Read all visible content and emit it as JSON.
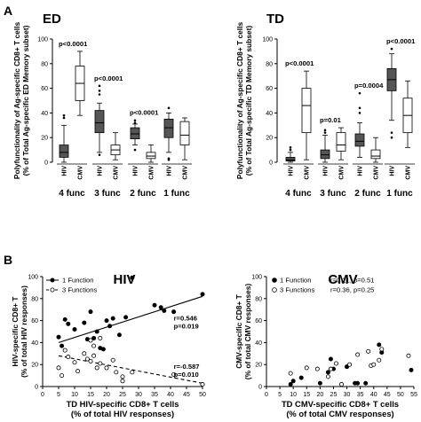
{
  "panel_labels": {
    "a": "A",
    "b": "B"
  },
  "chart_data": [
    {
      "type": "box",
      "title": "ED",
      "ylabel": [
        "Polyfunctionality of Ag-specific CD8+ T cells",
        "(% of Total Ag-specific ED Memory subset)"
      ],
      "ylim": [
        0,
        100
      ],
      "yticks": [
        0,
        20,
        40,
        60,
        80,
        100
      ],
      "groups": [
        "4 func",
        "3 func",
        "2 func",
        "1 func"
      ],
      "categories": [
        "HIV",
        "CMV"
      ],
      "fill_colors": {
        "HIV": "#555555",
        "CMV": "#ffffff"
      },
      "pvalues": [
        "p<0.0001",
        "p<0.0001",
        "p<0.0001",
        ""
      ],
      "boxes": [
        {
          "group": "4 func",
          "cat": "HIV",
          "whisker_low": 0,
          "q1": 4,
          "median": 8,
          "q3": 14,
          "whisker_high": 30,
          "outliers": [
            36,
            38
          ]
        },
        {
          "group": "4 func",
          "cat": "CMV",
          "whisker_low": 38,
          "q1": 50,
          "median": 64,
          "q3": 78,
          "whisker_high": 90,
          "outliers": []
        },
        {
          "group": "3 func",
          "cat": "HIV",
          "whisker_low": 8,
          "q1": 24,
          "median": 32,
          "q3": 42,
          "whisker_high": 48,
          "outliers": [
            6,
            55,
            58,
            62
          ]
        },
        {
          "group": "3 func",
          "cat": "CMV",
          "whisker_low": 2,
          "q1": 6,
          "median": 10,
          "q3": 14,
          "whisker_high": 24,
          "outliers": []
        },
        {
          "group": "2 func",
          "cat": "HIV",
          "whisker_low": 14,
          "q1": 19,
          "median": 23,
          "q3": 28,
          "whisker_high": 31,
          "outliers": [
            10,
            32,
            34
          ]
        },
        {
          "group": "2 func",
          "cat": "CMV",
          "whisker_low": 0,
          "q1": 3,
          "median": 5,
          "q3": 8,
          "whisker_high": 14,
          "outliers": []
        },
        {
          "group": "1 func",
          "cat": "HIV",
          "whisker_low": 8,
          "q1": 20,
          "median": 28,
          "q3": 35,
          "whisker_high": 40,
          "outliers": [
            2,
            3,
            44
          ]
        },
        {
          "group": "1 func",
          "cat": "CMV",
          "whisker_low": 2,
          "q1": 14,
          "median": 22,
          "q3": 33,
          "whisker_high": 36,
          "outliers": []
        }
      ]
    },
    {
      "type": "box",
      "title": "TD",
      "ylabel": [
        "Polyfunctionality of Ag-specific CD8+ T cells",
        "(% of Total Ag-specific TD Memory subset)"
      ],
      "ylim": [
        0,
        100
      ],
      "yticks": [
        0,
        20,
        40,
        60,
        80,
        100
      ],
      "groups": [
        "4 func",
        "3 func",
        "2 func",
        "1 func"
      ],
      "categories": [
        "HIV",
        "CMV"
      ],
      "fill_colors": {
        "HIV": "#555555",
        "CMV": "#ffffff"
      },
      "pvalues": [
        "p<0.0001",
        "p=0.01",
        "p=0.0004",
        "p<0.0001"
      ],
      "boxes": [
        {
          "group": "4 func",
          "cat": "HIV",
          "whisker_low": 0,
          "q1": 1,
          "median": 2,
          "q3": 4,
          "whisker_high": 8,
          "outliers": [
            10,
            12
          ]
        },
        {
          "group": "4 func",
          "cat": "CMV",
          "whisker_low": 2,
          "q1": 24,
          "median": 46,
          "q3": 60,
          "whisker_high": 74,
          "outliers": []
        },
        {
          "group": "3 func",
          "cat": "HIV",
          "whisker_low": 0,
          "q1": 3,
          "median": 6,
          "q3": 10,
          "whisker_high": 22,
          "outliers": [
            24,
            26
          ]
        },
        {
          "group": "3 func",
          "cat": "CMV",
          "whisker_low": 2,
          "q1": 9,
          "median": 14,
          "q3": 24,
          "whisker_high": 28,
          "outliers": []
        },
        {
          "group": "2 func",
          "cat": "HIV",
          "whisker_low": 4,
          "q1": 13,
          "median": 17,
          "q3": 23,
          "whisker_high": 32,
          "outliers": [
            40,
            44,
            56
          ]
        },
        {
          "group": "2 func",
          "cat": "CMV",
          "whisker_low": 0,
          "q1": 3,
          "median": 5,
          "q3": 10,
          "whisker_high": 20,
          "outliers": []
        },
        {
          "group": "1 func",
          "cat": "HIV",
          "whisker_low": 34,
          "q1": 58,
          "median": 67,
          "q3": 76,
          "whisker_high": 88,
          "outliers": [
            20,
            24,
            92
          ]
        },
        {
          "group": "1 func",
          "cat": "CMV",
          "whisker_low": 12,
          "q1": 24,
          "median": 38,
          "q3": 52,
          "whisker_high": 66,
          "outliers": []
        }
      ]
    },
    {
      "type": "scatter",
      "title": "HIV",
      "xlabel": [
        "TD HIV-specific CD8+ T cells",
        "(% of total HIV responses)"
      ],
      "ylabel": [
        "HIV-specific CD8+ T",
        "(% of total HIV responses)"
      ],
      "xlim": [
        0,
        50
      ],
      "ylim": [
        0,
        100
      ],
      "xticks": [
        0,
        5,
        10,
        15,
        20,
        25,
        30,
        35,
        40,
        45,
        50
      ],
      "yticks": [
        0,
        20,
        40,
        60,
        80,
        100
      ],
      "legend": [
        {
          "label": "1 Function",
          "marker": "filled",
          "line": "solid"
        },
        {
          "label": "3 Functions",
          "marker": "open",
          "line": "dashed"
        }
      ],
      "annotations": [
        {
          "lines": [
            "r=0.546",
            "p=0.019"
          ],
          "x": 41,
          "y": 60
        },
        {
          "lines": [
            "r=-0.587",
            "p=0.010"
          ],
          "x": 41,
          "y": 16
        }
      ],
      "series": [
        {
          "name": "1 Function",
          "marker": "filled",
          "fit": [
            [
              5,
              40
            ],
            [
              50,
              82
            ]
          ],
          "points": [
            [
              5,
              45
            ],
            [
              6,
              37
            ],
            [
              7,
              61
            ],
            [
              8,
              57
            ],
            [
              10,
              52
            ],
            [
              13,
              58
            ],
            [
              14,
              43
            ],
            [
              15,
              68
            ],
            [
              16,
              44
            ],
            [
              17,
              50
            ],
            [
              18,
              35
            ],
            [
              19,
              34
            ],
            [
              20,
              60
            ],
            [
              21,
              55
            ],
            [
              22,
              62
            ],
            [
              24,
              47
            ],
            [
              26,
              63
            ],
            [
              28,
              99
            ],
            [
              35,
              74
            ],
            [
              37,
              72
            ],
            [
              38,
              69
            ],
            [
              41,
              68
            ],
            [
              50,
              84
            ]
          ]
        },
        {
          "name": "3 Functions",
          "marker": "open",
          "fit": [
            [
              5,
              28
            ],
            [
              50,
              3
            ]
          ],
          "points": [
            [
              5,
              17
            ],
            [
              6,
              10
            ],
            [
              7,
              33
            ],
            [
              8,
              27
            ],
            [
              10,
              22
            ],
            [
              11,
              14
            ],
            [
              13,
              30
            ],
            [
              14,
              25
            ],
            [
              15,
              23
            ],
            [
              15,
              42
            ],
            [
              16,
              37
            ],
            [
              16,
              28
            ],
            [
              17,
              17
            ],
            [
              18,
              44
            ],
            [
              18,
              21
            ],
            [
              20,
              17
            ],
            [
              22,
              24
            ],
            [
              23,
              13
            ],
            [
              25,
              5
            ],
            [
              25,
              9
            ],
            [
              28,
              13
            ],
            [
              41,
              11
            ],
            [
              50,
              2
            ]
          ]
        }
      ]
    },
    {
      "type": "scatter",
      "title": "CMV",
      "xlabel": [
        "TD CMV-specific CD8+ T cells",
        "(% of total CMV responses)"
      ],
      "ylabel": [
        "CMV-specific CD8+ T",
        "(% of total CMV responses)"
      ],
      "xlim": [
        0,
        55
      ],
      "ylim": [
        0,
        100
      ],
      "xticks": [
        0,
        5,
        10,
        15,
        20,
        25,
        30,
        35,
        40,
        45,
        50,
        55
      ],
      "yticks": [
        0,
        20,
        40,
        60,
        80,
        100
      ],
      "legend": [
        {
          "label": "1 Function",
          "marker": "filled"
        },
        {
          "label": "3 Functions",
          "marker": "open"
        }
      ],
      "stats": [
        "r=0.21, p=0.51",
        "r=0.36, p=0.25"
      ],
      "series": [
        {
          "name": "1 Function",
          "marker": "filled",
          "points": [
            [
              9,
              2
            ],
            [
              10,
              5
            ],
            [
              13,
              8
            ],
            [
              20,
              3
            ],
            [
              23,
              13
            ],
            [
              24,
              25
            ],
            [
              25,
              16
            ],
            [
              30,
              18
            ],
            [
              33,
              3
            ],
            [
              34,
              3
            ],
            [
              37,
              3
            ],
            [
              42,
              38
            ],
            [
              43,
              31
            ],
            [
              54,
              15
            ]
          ]
        },
        {
          "name": "3 Functions",
          "marker": "open",
          "points": [
            [
              9,
              12
            ],
            [
              15,
              17
            ],
            [
              19,
              16
            ],
            [
              23,
              9
            ],
            [
              24,
              16
            ],
            [
              26,
              21
            ],
            [
              28,
              2
            ],
            [
              31,
              20
            ],
            [
              34,
              29
            ],
            [
              38,
              32
            ],
            [
              39,
              19
            ],
            [
              40,
              20
            ],
            [
              42,
              24
            ],
            [
              43,
              34
            ],
            [
              53,
              28
            ]
          ]
        }
      ]
    }
  ]
}
